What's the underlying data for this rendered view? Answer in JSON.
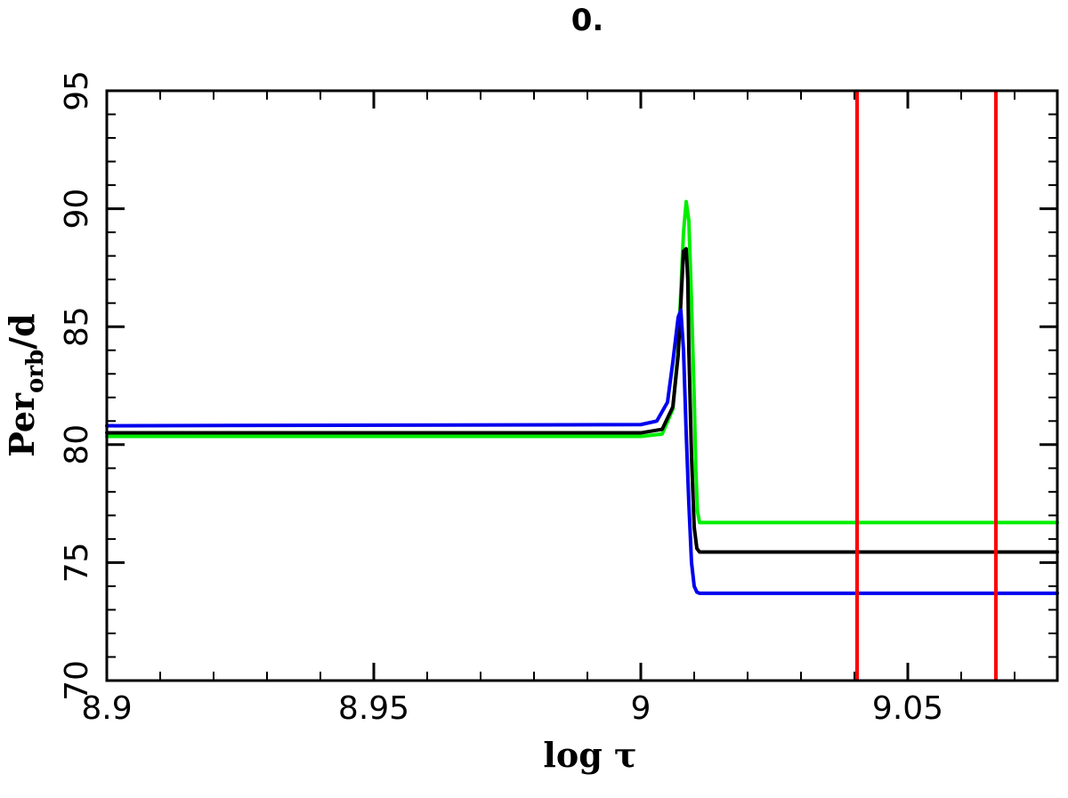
{
  "chart_data": {
    "type": "line",
    "title": "0.",
    "xlabel": "log τ",
    "ylabel_main": "Per",
    "ylabel_sub": "orb",
    "ylabel_suffix": "/d",
    "xlim": [
      8.9,
      9.078
    ],
    "ylim": [
      70,
      95
    ],
    "xticks": [
      8.9,
      8.95,
      9.0,
      9.05
    ],
    "xtick_labels": [
      "8.9",
      "8.95",
      "9",
      "9.05"
    ],
    "yticks": [
      70,
      75,
      80,
      85,
      90,
      95
    ],
    "ytick_labels": [
      "70",
      "75",
      "80",
      "85",
      "90",
      "95"
    ],
    "grid": false,
    "vlines": {
      "color": "#ff0000",
      "x": [
        9.0405,
        9.0665
      ]
    },
    "series": [
      {
        "color": "#00ee00",
        "x": [
          8.9,
          9.0,
          9.004,
          9.006,
          9.007,
          9.0075,
          9.008,
          9.0085,
          9.009,
          9.0095,
          9.01,
          9.0103,
          9.0106,
          9.011,
          9.078
        ],
        "values": [
          80.35,
          80.35,
          80.45,
          81.5,
          84.0,
          86.5,
          89.0,
          90.3,
          89.5,
          86.0,
          82.0,
          79.0,
          77.2,
          76.7,
          76.7
        ]
      },
      {
        "color": "#000000",
        "x": [
          8.9,
          9.0,
          9.004,
          9.006,
          9.007,
          9.0075,
          9.008,
          9.0085,
          9.0088,
          9.009,
          9.0095,
          9.01,
          9.0105,
          9.011,
          9.078
        ],
        "values": [
          80.5,
          80.5,
          80.65,
          81.6,
          83.8,
          86.0,
          88.2,
          88.3,
          87.0,
          84.0,
          79.5,
          76.5,
          75.6,
          75.45,
          75.45
        ]
      },
      {
        "color": "#0000ee",
        "x": [
          8.9,
          9.0,
          9.003,
          9.005,
          9.006,
          9.007,
          9.0075,
          9.008,
          9.0085,
          9.009,
          9.0095,
          9.01,
          9.0105,
          9.011,
          9.078
        ],
        "values": [
          80.8,
          80.85,
          81.0,
          81.8,
          83.5,
          85.4,
          85.7,
          84.0,
          80.5,
          77.5,
          75.0,
          74.0,
          73.75,
          73.7,
          73.7
        ]
      }
    ]
  }
}
